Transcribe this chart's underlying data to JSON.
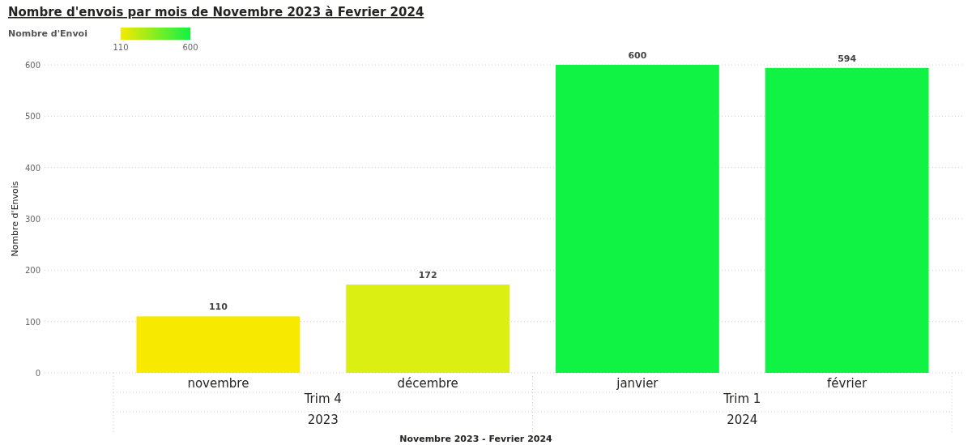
{
  "chart_data": {
    "type": "bar",
    "title": "Nombre d'envois par mois de Novembre 2023 à Fevrier 2024",
    "xlabel": "Novembre 2023 - Fevrier 2024",
    "ylabel": "Nombre d'Envois",
    "clabel": "Nombre d'Envoi",
    "categories": [
      "novembre",
      "décembre",
      "janvier",
      "février"
    ],
    "values": [
      110,
      172,
      600,
      594
    ],
    "colors": [
      "#f7e900",
      "#dcef12",
      "#10f244",
      "#10f244"
    ],
    "annotations": [
      "Trim 4",
      "Trim 1",
      "2023",
      "2024"
    ],
    "clim": [
      110,
      600
    ],
    "cticks": [
      110,
      600
    ],
    "ylim": [
      0,
      600
    ],
    "yticks": [
      0,
      100,
      200,
      300,
      400,
      500,
      600
    ],
    "grid": "y",
    "data_labels": true
  }
}
